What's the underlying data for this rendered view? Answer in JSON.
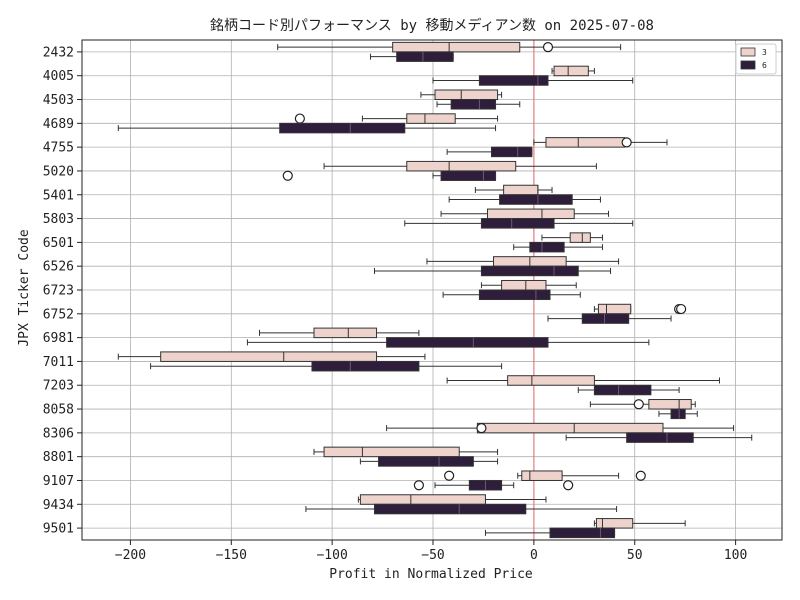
{
  "chart_data": {
    "type": "boxplot",
    "orientation": "horizontal",
    "title": "銘柄コード別パフォーマンス by 移動メディアン数 on 2025-07-08",
    "xlabel": "Profit in Normalized Price",
    "ylabel": "JPX Ticker Code",
    "xlim": [
      -224,
      123
    ],
    "xticks": [
      -200,
      -150,
      -100,
      -50,
      0,
      50,
      100
    ],
    "xtick_labels": [
      "−200",
      "−150",
      "−100",
      "−50",
      "0",
      "50",
      "100"
    ],
    "grid": true,
    "reference_line": {
      "x": 0,
      "color": "#e8696e"
    },
    "legend": {
      "position": "top-right",
      "entries": [
        {
          "label": "3",
          "color": "#edd3cb"
        },
        {
          "label": "6",
          "color": "#2e1e3b"
        }
      ]
    },
    "categories": [
      "2432",
      "4005",
      "4503",
      "4689",
      "4755",
      "5020",
      "5401",
      "5803",
      "6501",
      "6526",
      "6723",
      "6752",
      "6981",
      "7011",
      "7203",
      "8058",
      "8306",
      "8801",
      "9107",
      "9434",
      "9501"
    ],
    "series": [
      {
        "name": "3",
        "color": "#edd3cb",
        "boxes": [
          {
            "wlo": -127,
            "q1": -70,
            "med": -42,
            "q3": -7,
            "whi": 43,
            "fliers": [
              7
            ]
          },
          {
            "wlo": 9,
            "q1": 10,
            "med": 17,
            "q3": 27,
            "whi": 30,
            "fliers": []
          },
          {
            "wlo": -56,
            "q1": -49,
            "med": -36,
            "q3": -18,
            "whi": -16,
            "fliers": []
          },
          {
            "wlo": -85,
            "q1": -63,
            "med": -54,
            "q3": -39,
            "whi": -18,
            "fliers": [
              -116
            ]
          },
          {
            "wlo": 0,
            "q1": 6,
            "med": 22,
            "q3": 45,
            "whi": 66,
            "fliers": [
              46
            ]
          },
          {
            "wlo": -104,
            "q1": -63,
            "med": -42,
            "q3": -9,
            "whi": 31,
            "fliers": []
          },
          {
            "wlo": -29,
            "q1": -15,
            "med": 2,
            "q3": 2,
            "whi": 9,
            "fliers": []
          },
          {
            "wlo": -46,
            "q1": -23,
            "med": 4,
            "q3": 20,
            "whi": 37,
            "fliers": []
          },
          {
            "wlo": 4,
            "q1": 18,
            "med": 24,
            "q3": 28,
            "whi": 34,
            "fliers": []
          },
          {
            "wlo": -53,
            "q1": -20,
            "med": -2,
            "q3": 16,
            "whi": 42,
            "fliers": []
          },
          {
            "wlo": -26,
            "q1": -16,
            "med": -4,
            "q3": 6,
            "whi": 21,
            "fliers": []
          },
          {
            "wlo": 30,
            "q1": 32,
            "med": 36,
            "q3": 48,
            "whi": 48,
            "fliers": [
              72,
              73
            ]
          },
          {
            "wlo": -136,
            "q1": -109,
            "med": -92,
            "q3": -78,
            "whi": -57,
            "fliers": []
          },
          {
            "wlo": -206,
            "q1": -185,
            "med": -124,
            "q3": -78,
            "whi": -54,
            "fliers": []
          },
          {
            "wlo": -43,
            "q1": -13,
            "med": -1,
            "q3": 30,
            "whi": 92,
            "fliers": []
          },
          {
            "wlo": 28,
            "q1": 57,
            "med": 72,
            "q3": 78,
            "whi": 80,
            "fliers": [
              52
            ]
          },
          {
            "wlo": -73,
            "q1": -28,
            "med": 20,
            "q3": 64,
            "whi": 99,
            "fliers": [
              -26
            ]
          },
          {
            "wlo": -109,
            "q1": -104,
            "med": -85,
            "q3": -37,
            "whi": -18,
            "fliers": []
          },
          {
            "wlo": -8,
            "q1": -6,
            "med": -2,
            "q3": 14,
            "whi": 42,
            "fliers": [
              -42,
              53
            ]
          },
          {
            "wlo": -87,
            "q1": -86,
            "med": -61,
            "q3": -24,
            "whi": 6,
            "fliers": []
          },
          {
            "wlo": 30,
            "q1": 31,
            "med": 34,
            "q3": 49,
            "whi": 75,
            "fliers": []
          }
        ]
      },
      {
        "name": "6",
        "color": "#2e1e3b",
        "boxes": [
          {
            "wlo": -81,
            "q1": -68,
            "med": -55,
            "q3": -40,
            "whi": -40,
            "fliers": []
          },
          {
            "wlo": -50,
            "q1": -27,
            "med": 2,
            "q3": 7,
            "whi": 49,
            "fliers": []
          },
          {
            "wlo": -48,
            "q1": -41,
            "med": -27,
            "q3": -19,
            "whi": -7,
            "fliers": []
          },
          {
            "wlo": -206,
            "q1": -126,
            "med": -91,
            "q3": -64,
            "whi": -19,
            "fliers": []
          },
          {
            "wlo": -43,
            "q1": -21,
            "med": -8,
            "q3": -1,
            "whi": -1,
            "fliers": []
          },
          {
            "wlo": -50,
            "q1": -46,
            "med": -25,
            "q3": -19,
            "whi": -19,
            "fliers": [
              -122
            ]
          },
          {
            "wlo": -42,
            "q1": -17,
            "med": 2,
            "q3": 19,
            "whi": 33,
            "fliers": []
          },
          {
            "wlo": -64,
            "q1": -26,
            "med": -11,
            "q3": 10,
            "whi": 49,
            "fliers": []
          },
          {
            "wlo": -10,
            "q1": -2,
            "med": 4,
            "q3": 15,
            "whi": 34,
            "fliers": []
          },
          {
            "wlo": -79,
            "q1": -26,
            "med": 10,
            "q3": 22,
            "whi": 38,
            "fliers": []
          },
          {
            "wlo": -45,
            "q1": -27,
            "med": 1,
            "q3": 8,
            "whi": 23,
            "fliers": []
          },
          {
            "wlo": 7,
            "q1": 24,
            "med": 35,
            "q3": 47,
            "whi": 68,
            "fliers": []
          },
          {
            "wlo": -142,
            "q1": -73,
            "med": -30,
            "q3": 7,
            "whi": 57,
            "fliers": []
          },
          {
            "wlo": -190,
            "q1": -110,
            "med": -91,
            "q3": -57,
            "whi": -16,
            "fliers": []
          },
          {
            "wlo": 22,
            "q1": 30,
            "med": 42,
            "q3": 58,
            "whi": 72,
            "fliers": []
          },
          {
            "wlo": 62,
            "q1": 68,
            "med": 72,
            "q3": 75,
            "whi": 81,
            "fliers": []
          },
          {
            "wlo": 16,
            "q1": 46,
            "med": 66,
            "q3": 79,
            "whi": 108,
            "fliers": []
          },
          {
            "wlo": -86,
            "q1": -77,
            "med": -47,
            "q3": -30,
            "whi": -18,
            "fliers": []
          },
          {
            "wlo": -49,
            "q1": -32,
            "med": -24,
            "q3": -16,
            "whi": -10,
            "fliers": [
              -57,
              17
            ]
          },
          {
            "wlo": -113,
            "q1": -79,
            "med": -37,
            "q3": -4,
            "whi": 41,
            "fliers": []
          },
          {
            "wlo": -24,
            "q1": 8,
            "med": 33,
            "q3": 40,
            "whi": 40,
            "fliers": []
          }
        ]
      }
    ]
  }
}
